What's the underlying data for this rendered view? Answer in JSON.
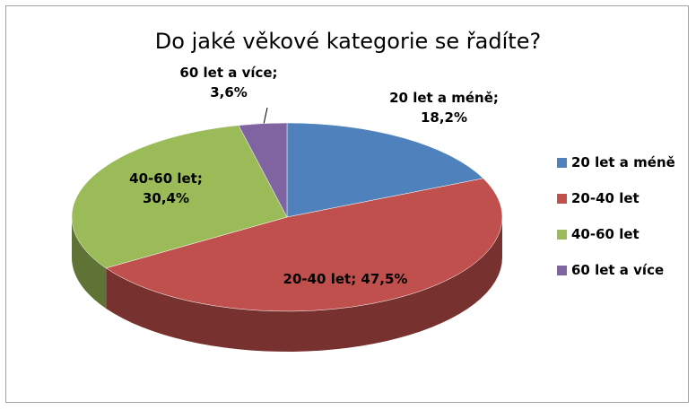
{
  "chart_data": {
    "type": "pie",
    "title": "Do jaké věkové kategorie se řadíte?",
    "categories": [
      "20 let a méně",
      "20-40 let",
      "40-60 let",
      "60 let a více"
    ],
    "values": [
      18.2,
      47.5,
      30.4,
      3.6
    ],
    "value_labels": [
      "20 let a méně; 18,2%",
      "20-40 let; 47,5%",
      "40-60 let; 30,4%",
      "60 let a více; 3,6%"
    ],
    "colors": [
      "#4f81bd",
      "#c0504d",
      "#9bbb59",
      "#8064a2"
    ],
    "legend": "right"
  }
}
